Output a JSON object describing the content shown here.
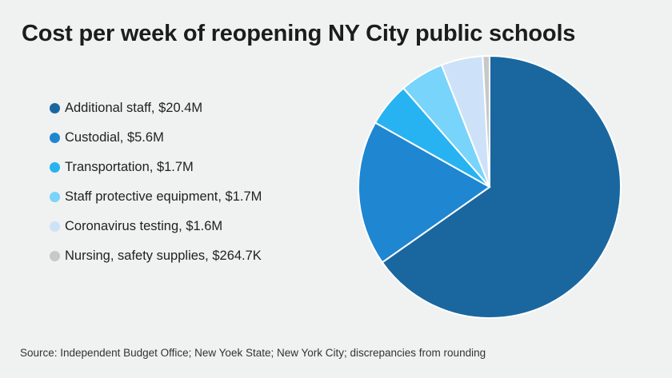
{
  "chart_data": {
    "type": "pie",
    "title": "Cost per week of reopening NY City public schools",
    "unit": "USD millions",
    "slices": [
      {
        "label": "Additional staff, $20.4M",
        "value": 20.4,
        "color": "#1a67a0"
      },
      {
        "label": "Custodial, $5.6M",
        "value": 5.6,
        "color": "#1f86d1"
      },
      {
        "label": "Transportation, $1.7M",
        "value": 1.7,
        "color": "#27b3f1"
      },
      {
        "label": "Staff protective equipment, $1.7M",
        "value": 1.7,
        "color": "#78d4fb"
      },
      {
        "label": "Coronavirus testing, $1.6M",
        "value": 1.6,
        "color": "#cde2f8"
      },
      {
        "label": "Nursing, safety supplies, $264.7K",
        "value": 0.2647,
        "color": "#c6c8ca"
      }
    ],
    "legend_position": "left",
    "source": "Source: Independent Budget Office; New Yoek State; New York City; discrepancies from rounding"
  }
}
